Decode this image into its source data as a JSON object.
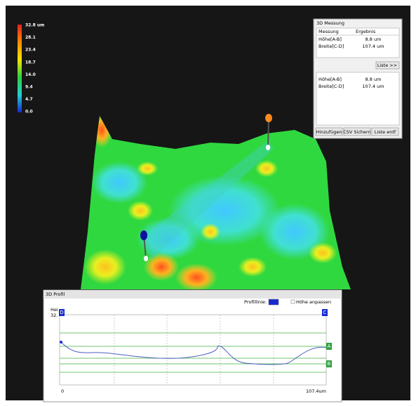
{
  "color_scale": {
    "labels": [
      "32.8 um",
      "28.1",
      "23.4",
      "18.7",
      "14.0",
      "9.4",
      "4.7",
      "0.0"
    ]
  },
  "measure_panel": {
    "title": "3D Messung",
    "headers": [
      "Messung",
      "Ergebnis"
    ],
    "rows": [
      [
        "Höhe[A-B]",
        "8.8 um"
      ],
      [
        "Breite[C-D]",
        "107.4 um"
      ]
    ],
    "list_button": "Liste >>",
    "rows2": [
      [
        "Höhe[A-B]",
        "8.8 um"
      ],
      [
        "Breite[C-D]",
        "107.4 um"
      ]
    ],
    "buttons": [
      "Hinzufügen",
      "CSV Sichern",
      "Liste entf"
    ]
  },
  "profile_panel": {
    "title": "3D Profil",
    "profile_line_label": "Profillinie:",
    "fit_height_label": "Höhe anpassen",
    "y_label": [
      "Hei",
      "32."
    ],
    "markers": [
      "D",
      "C",
      "A",
      "B"
    ],
    "x_start": "0",
    "x_end": "107.4um"
  }
}
